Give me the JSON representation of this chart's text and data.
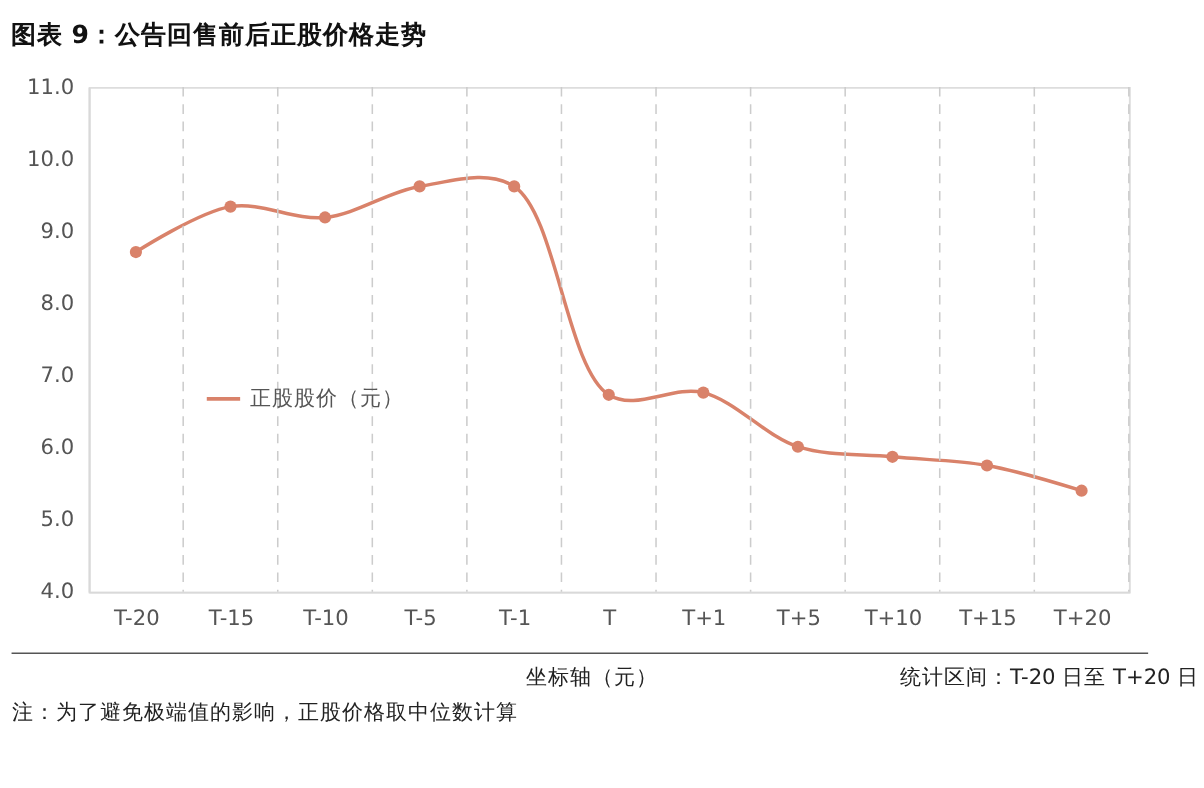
{
  "chart_data": {
    "type": "line",
    "title": "图表 9：公告回售前后正股价格走势",
    "categories": [
      "T-20",
      "T-15",
      "T-10",
      "T-5",
      "T-1",
      "T",
      "T+1",
      "T+5",
      "T+10",
      "T+15",
      "T+20"
    ],
    "series": [
      {
        "name": "正股股价（元）",
        "color": "#d9826a",
        "values": [
          8.71,
          9.34,
          9.19,
          9.62,
          9.62,
          6.73,
          6.76,
          6.01,
          5.87,
          5.75,
          5.4
        ]
      }
    ],
    "ylim": [
      4,
      11
    ],
    "yticks": [
      {
        "value": 4,
        "label": "4.0"
      },
      {
        "value": 5,
        "label": "5.0"
      },
      {
        "value": 6,
        "label": "6.0"
      },
      {
        "value": 7,
        "label": "7.0"
      },
      {
        "value": 8,
        "label": "8.0"
      },
      {
        "value": 9,
        "label": "9.0"
      },
      {
        "value": 10,
        "label": "10.0"
      },
      {
        "value": 11,
        "label": "11.0"
      }
    ],
    "grid": "x",
    "legend": "left",
    "marker": "circle",
    "line_style": "solid",
    "annotations": [
      "坐标轴（元）",
      "统计区间：T-20 日至 T+20 日",
      "注：为了避免极端值的影响，正股价格取中位数计算"
    ]
  }
}
